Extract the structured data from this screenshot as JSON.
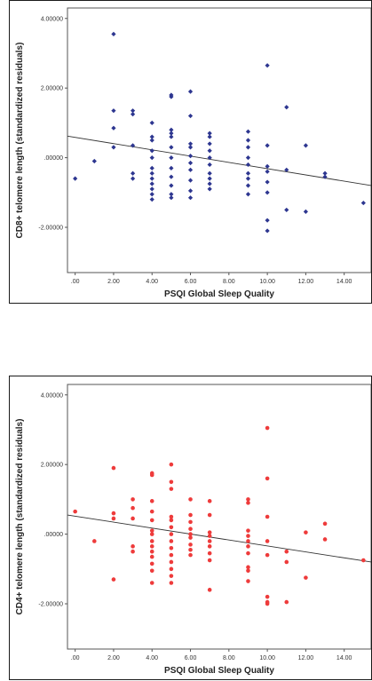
{
  "chart_data": [
    {
      "type": "scatter",
      "xlabel": "PSQI Global Sleep Quality",
      "ylabel": "CD8+ telomere length (standardized residuals)",
      "x_ticks": [
        ".00",
        "2.00",
        "4.00",
        "6.00",
        "8.00",
        "10.00",
        "12.00",
        "14.00"
      ],
      "y_ticks": [
        "4.00000",
        "2.00000",
        ".00000",
        "-2.00000"
      ],
      "xlim": [
        -0.4,
        15.4
      ],
      "ylim": [
        -3.3,
        4.3
      ],
      "grid": false,
      "marker": "diamond",
      "color": "#2d3690",
      "fit_line": {
        "x": [
          -0.4,
          15.4
        ],
        "y": [
          0.62,
          -0.8
        ]
      },
      "points": [
        [
          0,
          -0.6
        ],
        [
          1,
          -0.1
        ],
        [
          2,
          3.55
        ],
        [
          2,
          1.35
        ],
        [
          2,
          0.85
        ],
        [
          2,
          0.3
        ],
        [
          3,
          1.35
        ],
        [
          3,
          1.25
        ],
        [
          3,
          0.35
        ],
        [
          3,
          -0.45
        ],
        [
          3,
          -0.6
        ],
        [
          4,
          1.0
        ],
        [
          4,
          0.6
        ],
        [
          4,
          0.5
        ],
        [
          4,
          0.2
        ],
        [
          4,
          0.0
        ],
        [
          4,
          -0.3
        ],
        [
          4,
          -0.45
        ],
        [
          4,
          -0.6
        ],
        [
          4,
          -0.75
        ],
        [
          4,
          -0.9
        ],
        [
          4,
          -1.05
        ],
        [
          4,
          -1.2
        ],
        [
          5,
          1.8
        ],
        [
          5,
          1.75
        ],
        [
          5,
          0.8
        ],
        [
          5,
          0.7
        ],
        [
          5,
          0.6
        ],
        [
          5,
          0.3
        ],
        [
          5,
          0.0
        ],
        [
          5,
          -0.3
        ],
        [
          5,
          -0.55
        ],
        [
          5,
          -0.8
        ],
        [
          5,
          -1.05
        ],
        [
          5,
          -1.15
        ],
        [
          6,
          1.9
        ],
        [
          6,
          1.2
        ],
        [
          6,
          0.4
        ],
        [
          6,
          0.3
        ],
        [
          6,
          0.05
        ],
        [
          6,
          -0.15
        ],
        [
          6,
          -0.35
        ],
        [
          6,
          -0.65
        ],
        [
          6,
          -0.95
        ],
        [
          6,
          -1.15
        ],
        [
          7,
          0.7
        ],
        [
          7,
          0.6
        ],
        [
          7,
          0.4
        ],
        [
          7,
          0.2
        ],
        [
          7,
          0.0
        ],
        [
          7,
          -0.2
        ],
        [
          7,
          -0.45
        ],
        [
          7,
          -0.6
        ],
        [
          7,
          -0.75
        ],
        [
          7,
          -0.9
        ],
        [
          9,
          0.75
        ],
        [
          9,
          0.5
        ],
        [
          9,
          0.3
        ],
        [
          9,
          0.0
        ],
        [
          9,
          -0.2
        ],
        [
          9,
          -0.45
        ],
        [
          9,
          -0.6
        ],
        [
          9,
          -0.8
        ],
        [
          9,
          -1.05
        ],
        [
          10,
          2.65
        ],
        [
          10,
          0.35
        ],
        [
          10,
          -0.25
        ],
        [
          10,
          -0.4
        ],
        [
          10,
          -0.7
        ],
        [
          10,
          -1.0
        ],
        [
          10,
          -1.8
        ],
        [
          10,
          -2.1
        ],
        [
          11,
          1.45
        ],
        [
          11,
          -0.35
        ],
        [
          11,
          -1.5
        ],
        [
          12,
          0.35
        ],
        [
          12,
          -1.55
        ],
        [
          13,
          -0.45
        ],
        [
          13,
          -0.55
        ],
        [
          15,
          -1.3
        ]
      ]
    },
    {
      "type": "scatter",
      "xlabel": "PSQI Global Sleep Quality",
      "ylabel": "CD4+ telomere length (standardized residuals)",
      "x_ticks": [
        ".00",
        "2.00",
        "4.00",
        "6.00",
        "8.00",
        "10.00",
        "12.00",
        "14.00"
      ],
      "y_ticks": [
        "4.00000",
        "2.00000",
        ".00000",
        "-2.00000"
      ],
      "xlim": [
        -0.4,
        15.4
      ],
      "ylim": [
        -3.3,
        4.3
      ],
      "grid": false,
      "marker": "circle",
      "color": "#ee3b3b",
      "fit_line": {
        "x": [
          -0.4,
          15.4
        ],
        "y": [
          0.55,
          -0.8
        ]
      },
      "points": [
        [
          0,
          0.65
        ],
        [
          1,
          -0.2
        ],
        [
          2,
          1.9
        ],
        [
          2,
          0.6
        ],
        [
          2,
          0.45
        ],
        [
          2,
          -1.3
        ],
        [
          3,
          1.0
        ],
        [
          3,
          0.75
        ],
        [
          3,
          0.45
        ],
        [
          3,
          -0.35
        ],
        [
          3,
          -0.5
        ],
        [
          4,
          1.75
        ],
        [
          4,
          1.7
        ],
        [
          4,
          0.95
        ],
        [
          4,
          0.65
        ],
        [
          4,
          0.4
        ],
        [
          4,
          0.1
        ],
        [
          4,
          0.0
        ],
        [
          4,
          -0.2
        ],
        [
          4,
          -0.35
        ],
        [
          4,
          -0.5
        ],
        [
          4,
          -0.65
        ],
        [
          4,
          -0.85
        ],
        [
          4,
          -1.05
        ],
        [
          4,
          -1.4
        ],
        [
          5,
          2.0
        ],
        [
          5,
          1.5
        ],
        [
          5,
          1.3
        ],
        [
          5,
          0.5
        ],
        [
          5,
          0.4
        ],
        [
          5,
          0.2
        ],
        [
          5,
          0.0
        ],
        [
          5,
          -0.2
        ],
        [
          5,
          -0.4
        ],
        [
          5,
          -0.6
        ],
        [
          5,
          -0.8
        ],
        [
          5,
          -1.0
        ],
        [
          5,
          -1.2
        ],
        [
          5,
          -1.4
        ],
        [
          6,
          1.0
        ],
        [
          6,
          0.55
        ],
        [
          6,
          0.35
        ],
        [
          6,
          0.15
        ],
        [
          6,
          0.0
        ],
        [
          6,
          -0.1
        ],
        [
          6,
          -0.3
        ],
        [
          6,
          -0.45
        ],
        [
          6,
          -0.6
        ],
        [
          7,
          0.95
        ],
        [
          7,
          0.55
        ],
        [
          7,
          0.05
        ],
        [
          7,
          -0.05
        ],
        [
          7,
          -0.2
        ],
        [
          7,
          -0.35
        ],
        [
          7,
          -0.55
        ],
        [
          7,
          -0.75
        ],
        [
          7,
          -1.6
        ],
        [
          9,
          1.0
        ],
        [
          9,
          0.9
        ],
        [
          9,
          0.1
        ],
        [
          9,
          -0.05
        ],
        [
          9,
          -0.2
        ],
        [
          9,
          -0.35
        ],
        [
          9,
          -0.55
        ],
        [
          9,
          -0.95
        ],
        [
          9,
          -1.05
        ],
        [
          9,
          -1.35
        ],
        [
          10,
          3.05
        ],
        [
          10,
          1.6
        ],
        [
          10,
          0.5
        ],
        [
          10,
          -0.2
        ],
        [
          10,
          -0.6
        ],
        [
          10,
          -1.8
        ],
        [
          10,
          -1.95
        ],
        [
          10,
          -2.0
        ],
        [
          11,
          -0.5
        ],
        [
          11,
          -0.8
        ],
        [
          11,
          -1.95
        ],
        [
          12,
          0.05
        ],
        [
          12,
          -1.25
        ],
        [
          13,
          0.3
        ],
        [
          13,
          -0.15
        ],
        [
          15,
          -0.75
        ]
      ]
    }
  ]
}
